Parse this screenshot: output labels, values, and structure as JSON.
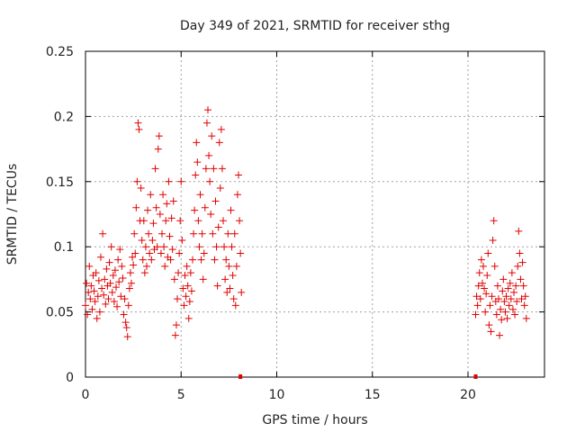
{
  "chart_data": {
    "type": "scatter",
    "title": "Day 349 of 2021, SRMTID for receiver sthg",
    "xlabel": "GPS time / hours",
    "ylabel": "SRMTID / TECUs",
    "xlim": [
      0,
      24
    ],
    "ylim": [
      0,
      0.25
    ],
    "xticks": [
      0,
      5,
      10,
      15,
      20
    ],
    "yticks": [
      0,
      0.05,
      0.1,
      0.15,
      0.2,
      0.25
    ],
    "xtick_labels": [
      "0",
      "5",
      "10",
      "15",
      "20"
    ],
    "ytick_labels": [
      "0",
      "0.05",
      "0.1",
      "0.15",
      "0.2",
      "0.25"
    ],
    "grid": true,
    "marker": "+",
    "color": "#e00000",
    "series": [
      {
        "name": "SRMTID",
        "points": [
          [
            0.0,
            0.055
          ],
          [
            0.05,
            0.072
          ],
          [
            0.1,
            0.048
          ],
          [
            0.15,
            0.065
          ],
          [
            0.2,
            0.085
          ],
          [
            0.25,
            0.06
          ],
          [
            0.3,
            0.07
          ],
          [
            0.35,
            0.052
          ],
          [
            0.4,
            0.078
          ],
          [
            0.45,
            0.066
          ],
          [
            0.5,
            0.058
          ],
          [
            0.55,
            0.08
          ],
          [
            0.6,
            0.045
          ],
          [
            0.65,
            0.062
          ],
          [
            0.7,
            0.074
          ],
          [
            0.75,
            0.05
          ],
          [
            0.8,
            0.092
          ],
          [
            0.85,
            0.068
          ],
          [
            0.9,
            0.11
          ],
          [
            0.95,
            0.063
          ],
          [
            1.0,
            0.075
          ],
          [
            1.05,
            0.056
          ],
          [
            1.1,
            0.083
          ],
          [
            1.15,
            0.07
          ],
          [
            1.2,
            0.06
          ],
          [
            1.25,
            0.088
          ],
          [
            1.3,
            0.072
          ],
          [
            1.35,
            0.1
          ],
          [
            1.4,
            0.065
          ],
          [
            1.45,
            0.078
          ],
          [
            1.5,
            0.058
          ],
          [
            1.55,
            0.082
          ],
          [
            1.6,
            0.069
          ],
          [
            1.65,
            0.054
          ],
          [
            1.7,
            0.09
          ],
          [
            1.75,
            0.073
          ],
          [
            1.8,
            0.098
          ],
          [
            1.85,
            0.062
          ],
          [
            1.9,
            0.085
          ],
          [
            1.95,
            0.076
          ],
          [
            2.0,
            0.048
          ],
          [
            2.05,
            0.06
          ],
          [
            2.1,
            0.042
          ],
          [
            2.15,
            0.038
          ],
          [
            2.2,
            0.031
          ],
          [
            2.25,
            0.055
          ],
          [
            2.3,
            0.068
          ],
          [
            2.35,
            0.08
          ],
          [
            2.4,
            0.072
          ],
          [
            2.45,
            0.092
          ],
          [
            2.5,
            0.086
          ],
          [
            2.55,
            0.11
          ],
          [
            2.6,
            0.095
          ],
          [
            2.65,
            0.13
          ],
          [
            2.7,
            0.15
          ],
          [
            2.75,
            0.195
          ],
          [
            2.8,
            0.19
          ],
          [
            2.85,
            0.12
          ],
          [
            2.9,
            0.145
          ],
          [
            2.95,
            0.105
          ],
          [
            3.0,
            0.09
          ],
          [
            3.05,
            0.12
          ],
          [
            3.1,
            0.08
          ],
          [
            3.15,
            0.1
          ],
          [
            3.2,
            0.085
          ],
          [
            3.25,
            0.128
          ],
          [
            3.3,
            0.11
          ],
          [
            3.35,
            0.095
          ],
          [
            3.4,
            0.14
          ],
          [
            3.45,
            0.09
          ],
          [
            3.5,
            0.105
          ],
          [
            3.55,
            0.118
          ],
          [
            3.6,
            0.098
          ],
          [
            3.65,
            0.16
          ],
          [
            3.7,
            0.13
          ],
          [
            3.75,
            0.1
          ],
          [
            3.8,
            0.175
          ],
          [
            3.85,
            0.185
          ],
          [
            3.9,
            0.125
          ],
          [
            3.95,
            0.095
          ],
          [
            4.0,
            0.11
          ],
          [
            4.05,
            0.14
          ],
          [
            4.1,
            0.1
          ],
          [
            4.15,
            0.085
          ],
          [
            4.2,
            0.12
          ],
          [
            4.25,
            0.133
          ],
          [
            4.3,
            0.092
          ],
          [
            4.35,
            0.15
          ],
          [
            4.4,
            0.108
          ],
          [
            4.45,
            0.09
          ],
          [
            4.5,
            0.122
          ],
          [
            4.55,
            0.098
          ],
          [
            4.6,
            0.135
          ],
          [
            4.65,
            0.075
          ],
          [
            4.7,
            0.032
          ],
          [
            4.75,
            0.04
          ],
          [
            4.8,
            0.06
          ],
          [
            4.85,
            0.08
          ],
          [
            4.9,
            0.095
          ],
          [
            4.95,
            0.12
          ],
          [
            5.0,
            0.15
          ],
          [
            5.05,
            0.105
          ],
          [
            5.1,
            0.068
          ],
          [
            5.15,
            0.055
          ],
          [
            5.2,
            0.078
          ],
          [
            5.25,
            0.062
          ],
          [
            5.3,
            0.085
          ],
          [
            5.35,
            0.07
          ],
          [
            5.4,
            0.045
          ],
          [
            5.45,
            0.058
          ],
          [
            5.5,
            0.08
          ],
          [
            5.55,
            0.066
          ],
          [
            5.6,
            0.09
          ],
          [
            5.65,
            0.11
          ],
          [
            5.7,
            0.128
          ],
          [
            5.75,
            0.155
          ],
          [
            5.8,
            0.18
          ],
          [
            5.85,
            0.165
          ],
          [
            5.9,
            0.12
          ],
          [
            5.95,
            0.1
          ],
          [
            6.0,
            0.14
          ],
          [
            6.05,
            0.09
          ],
          [
            6.1,
            0.11
          ],
          [
            6.15,
            0.075
          ],
          [
            6.2,
            0.095
          ],
          [
            6.25,
            0.13
          ],
          [
            6.3,
            0.16
          ],
          [
            6.35,
            0.195
          ],
          [
            6.4,
            0.205
          ],
          [
            6.45,
            0.17
          ],
          [
            6.5,
            0.15
          ],
          [
            6.55,
            0.125
          ],
          [
            6.6,
            0.185
          ],
          [
            6.65,
            0.11
          ],
          [
            6.7,
            0.16
          ],
          [
            6.75,
            0.09
          ],
          [
            6.8,
            0.135
          ],
          [
            6.85,
            0.1
          ],
          [
            6.9,
            0.07
          ],
          [
            6.95,
            0.115
          ],
          [
            7.0,
            0.18
          ],
          [
            7.05,
            0.145
          ],
          [
            7.1,
            0.19
          ],
          [
            7.15,
            0.16
          ],
          [
            7.2,
            0.12
          ],
          [
            7.25,
            0.1
          ],
          [
            7.3,
            0.075
          ],
          [
            7.35,
            0.09
          ],
          [
            7.4,
            0.065
          ],
          [
            7.45,
            0.11
          ],
          [
            7.5,
            0.085
          ],
          [
            7.55,
            0.068
          ],
          [
            7.6,
            0.128
          ],
          [
            7.65,
            0.1
          ],
          [
            7.7,
            0.078
          ],
          [
            7.75,
            0.06
          ],
          [
            7.8,
            0.11
          ],
          [
            7.85,
            0.055
          ],
          [
            7.9,
            0.085
          ],
          [
            7.95,
            0.14
          ],
          [
            8.0,
            0.155
          ],
          [
            8.05,
            0.12
          ],
          [
            8.1,
            0.095
          ],
          [
            8.15,
            0.065
          ],
          [
            20.4,
            0.048
          ],
          [
            20.45,
            0.062
          ],
          [
            20.5,
            0.055
          ],
          [
            20.55,
            0.07
          ],
          [
            20.6,
            0.08
          ],
          [
            20.65,
            0.06
          ],
          [
            20.7,
            0.09
          ],
          [
            20.75,
            0.072
          ],
          [
            20.8,
            0.085
          ],
          [
            20.85,
            0.068
          ],
          [
            20.9,
            0.05
          ],
          [
            20.95,
            0.064
          ],
          [
            21.0,
            0.078
          ],
          [
            21.05,
            0.095
          ],
          [
            21.1,
            0.04
          ],
          [
            21.15,
            0.055
          ],
          [
            21.2,
            0.035
          ],
          [
            21.25,
            0.062
          ],
          [
            21.3,
            0.105
          ],
          [
            21.35,
            0.12
          ],
          [
            21.4,
            0.085
          ],
          [
            21.45,
            0.058
          ],
          [
            21.5,
            0.048
          ],
          [
            21.55,
            0.07
          ],
          [
            21.6,
            0.06
          ],
          [
            21.65,
            0.032
          ],
          [
            21.7,
            0.052
          ],
          [
            21.75,
            0.044
          ],
          [
            21.8,
            0.066
          ],
          [
            21.85,
            0.075
          ],
          [
            21.9,
            0.058
          ],
          [
            21.95,
            0.05
          ],
          [
            22.0,
            0.062
          ],
          [
            22.05,
            0.045
          ],
          [
            22.1,
            0.068
          ],
          [
            22.15,
            0.055
          ],
          [
            22.2,
            0.072
          ],
          [
            22.25,
            0.06
          ],
          [
            22.3,
            0.08
          ],
          [
            22.35,
            0.052
          ],
          [
            22.4,
            0.065
          ],
          [
            22.45,
            0.048
          ],
          [
            22.5,
            0.07
          ],
          [
            22.55,
            0.058
          ],
          [
            22.6,
            0.085
          ],
          [
            22.65,
            0.112
          ],
          [
            22.7,
            0.095
          ],
          [
            22.75,
            0.075
          ],
          [
            22.8,
            0.06
          ],
          [
            22.85,
            0.088
          ],
          [
            22.9,
            0.07
          ],
          [
            22.95,
            0.055
          ],
          [
            23.0,
            0.062
          ],
          [
            23.05,
            0.045
          ]
        ]
      }
    ],
    "gap_markers": [
      8.1,
      20.4
    ]
  }
}
